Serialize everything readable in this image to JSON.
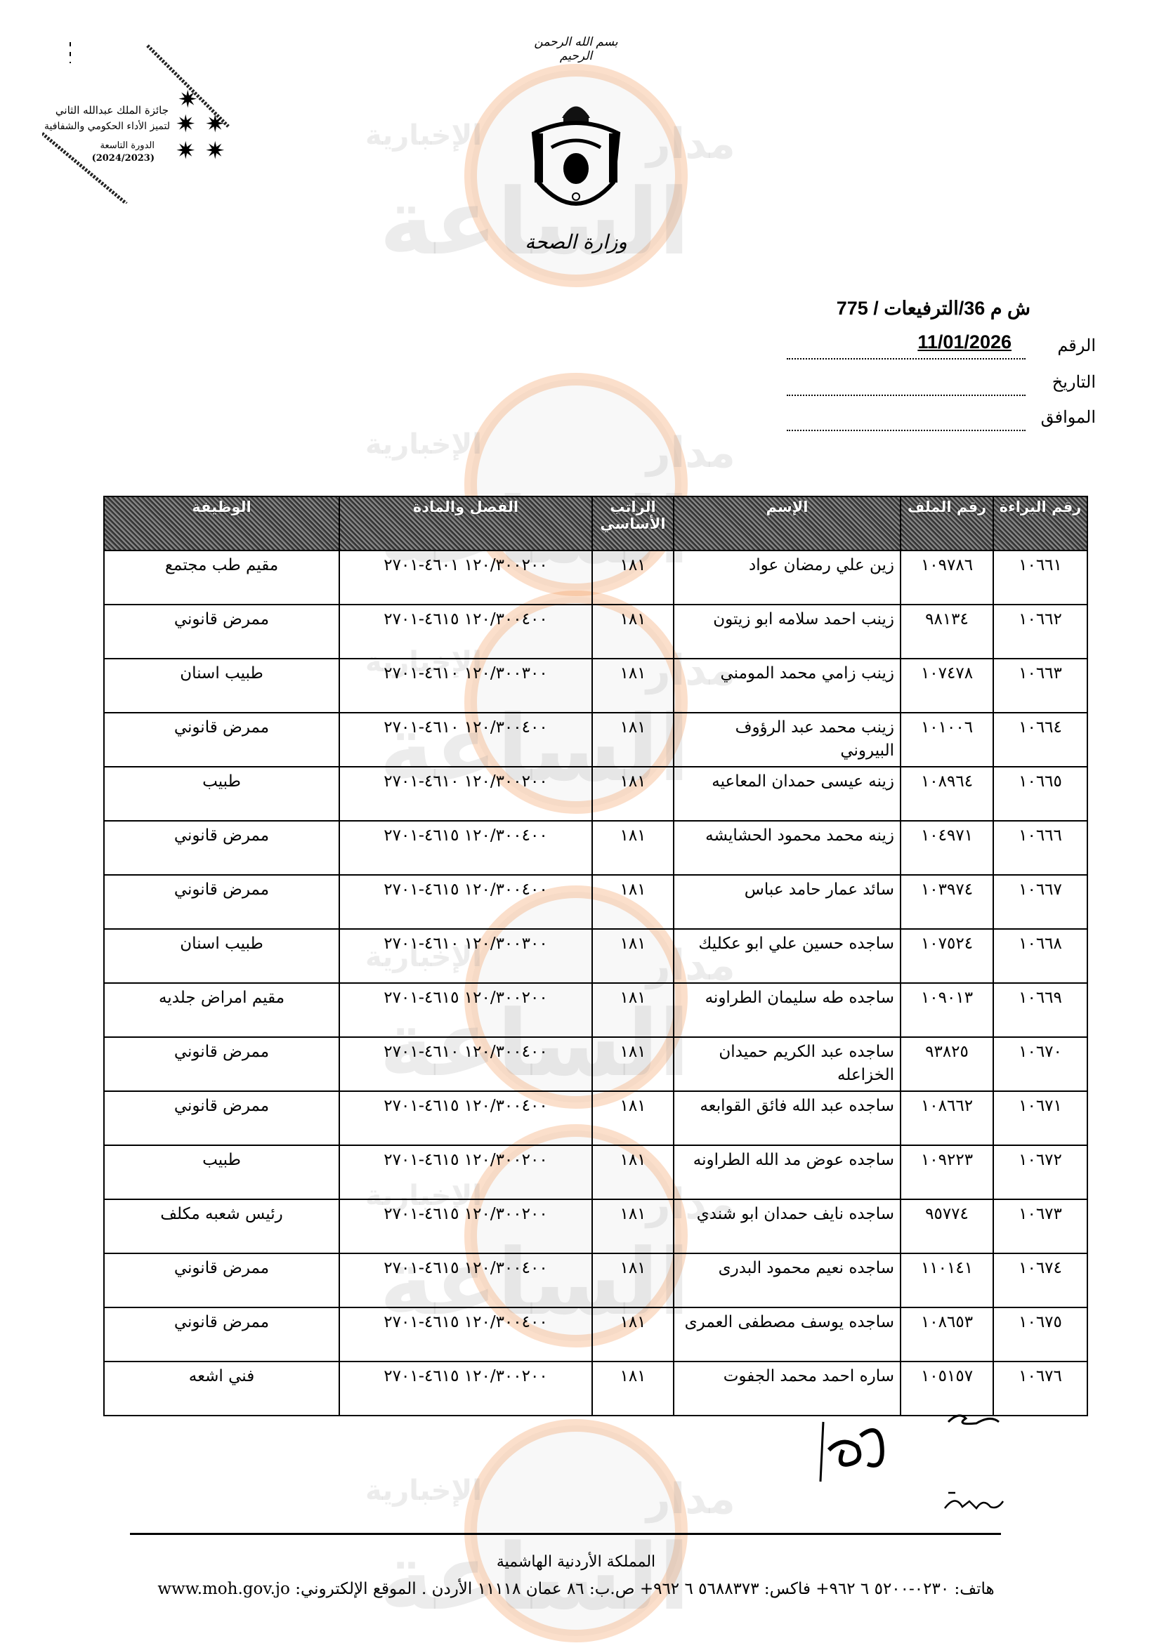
{
  "watermark": {
    "line1": "مدار",
    "line2": "الساعة",
    "line3": "الإخبارية"
  },
  "award": {
    "line1": "جائزة الملك عبدالله الثاني",
    "line2": "لتميز الأداء الحكومي والشفافية",
    "line3": "الدورة التاسعة",
    "line4": "(2024/2023)"
  },
  "letterhead": {
    "basmala": "بسم الله الرحمن الرحيم",
    "ministry": "وزارة الصحة"
  },
  "reference": {
    "ref_text": "ش م 36/الترفيعات / 775",
    "number_label": "الرقم",
    "number_value": "11/01/2026",
    "date_label": "التاريخ",
    "corresponding_label": "الموافق"
  },
  "table": {
    "headers": [
      "رقم البراءة",
      "رقم الملف",
      "الإسم",
      "الراتب الأساسي",
      "الفصل والمادة",
      "الوظيفة"
    ],
    "rows": [
      {
        "cert": "١٠٦٦١",
        "file": "١٠٩٧٨٦",
        "name": "زين علي رمضان عواد",
        "salary": "١٨١",
        "chapter": "١٢٠/٣٠٠٢٠٠  ٤٦٠١-٢٧٠١",
        "job": "مقيم طب مجتمع"
      },
      {
        "cert": "١٠٦٦٢",
        "file": "٩٨١٣٤",
        "name": "زينب احمد سلامه ابو زيتون",
        "salary": "١٨١",
        "chapter": "١٢٠/٣٠٠٤٠٠  ٤٦١٥-٢٧٠١",
        "job": "ممرض قانوني"
      },
      {
        "cert": "١٠٦٦٣",
        "file": "١٠٧٤٧٨",
        "name": "زينب زامي محمد المومني",
        "salary": "١٨١",
        "chapter": "١٢٠/٣٠٠٣٠٠  ٤٦١٠-٢٧٠١",
        "job": "طبيب اسنان"
      },
      {
        "cert": "١٠٦٦٤",
        "file": "١٠١٠٠٦",
        "name": "زينب محمد عبد الرؤوف البيروني",
        "salary": "١٨١",
        "chapter": "١٢٠/٣٠٠٤٠٠  ٤٦١٠-٢٧٠١",
        "job": "ممرض قانوني"
      },
      {
        "cert": "١٠٦٦٥",
        "file": "١٠٨٩٦٤",
        "name": "زينه عيسى حمدان المعاعيه",
        "salary": "١٨١",
        "chapter": "١٢٠/٣٠٠٢٠٠  ٤٦١٠-٢٧٠١",
        "job": "طبيب"
      },
      {
        "cert": "١٠٦٦٦",
        "file": "١٠٤٩٧١",
        "name": "زينه محمد محمود الحشايشه",
        "salary": "١٨١",
        "chapter": "١٢٠/٣٠٠٤٠٠  ٤٦١٥-٢٧٠١",
        "job": "ممرض قانوني"
      },
      {
        "cert": "١٠٦٦٧",
        "file": "١٠٣٩٧٤",
        "name": "سائد عمار حامد عباس",
        "salary": "١٨١",
        "chapter": "١٢٠/٣٠٠٤٠٠  ٤٦١٥-٢٧٠١",
        "job": "ممرض قانوني"
      },
      {
        "cert": "١٠٦٦٨",
        "file": "١٠٧٥٢٤",
        "name": "ساجده حسين علي ابو عكليك",
        "salary": "١٨١",
        "chapter": "١٢٠/٣٠٠٣٠٠  ٤٦١٠-٢٧٠١",
        "job": "طبيب اسنان"
      },
      {
        "cert": "١٠٦٦٩",
        "file": "١٠٩٠١٣",
        "name": "ساجده طه سليمان الطراونه",
        "salary": "١٨١",
        "chapter": "١٢٠/٣٠٠٢٠٠  ٤٦١٥-٢٧٠١",
        "job": "مقيم امراض جلديه"
      },
      {
        "cert": "١٠٦٧٠",
        "file": "٩٣٨٢٥",
        "name": "ساجده عبد الكريم حميدان الخزاعله",
        "salary": "١٨١",
        "chapter": "١٢٠/٣٠٠٤٠٠  ٤٦١٠-٢٧٠١",
        "job": "ممرض قانوني"
      },
      {
        "cert": "١٠٦٧١",
        "file": "١٠٨٦٦٢",
        "name": "ساجده عبد الله فائق القوابعه",
        "salary": "١٨١",
        "chapter": "١٢٠/٣٠٠٤٠٠  ٤٦١٥-٢٧٠١",
        "job": "ممرض قانوني"
      },
      {
        "cert": "١٠٦٧٢",
        "file": "١٠٩٢٢٣",
        "name": "ساجده عوض مد الله الطراونه",
        "salary": "١٨١",
        "chapter": "١٢٠/٣٠٠٢٠٠  ٤٦١٥-٢٧٠١",
        "job": "طبيب"
      },
      {
        "cert": "١٠٦٧٣",
        "file": "٩٥٧٧٤",
        "name": "ساجده نايف حمدان ابو شندي",
        "salary": "١٨١",
        "chapter": "١٢٠/٣٠٠٢٠٠  ٤٦١٥-٢٧٠١",
        "job": "رئيس شعبه مكلف"
      },
      {
        "cert": "١٠٦٧٤",
        "file": "١١٠١٤١",
        "name": "ساجده نعيم محمود البدرى",
        "salary": "١٨١",
        "chapter": "١٢٠/٣٠٠٤٠٠  ٤٦١٥-٢٧٠١",
        "job": "ممرض قانوني"
      },
      {
        "cert": "١٠٦٧٥",
        "file": "١٠٨٦٥٣",
        "name": "ساجده يوسف مصطفى العمرى",
        "salary": "١٨١",
        "chapter": "١٢٠/٣٠٠٤٠٠  ٤٦١٥-٢٧٠١",
        "job": "ممرض قانوني"
      },
      {
        "cert": "١٠٦٧٦",
        "file": "١٠٥١٥٧",
        "name": "ساره احمد محمد الجفوت",
        "salary": "١٨١",
        "chapter": "١٢٠/٣٠٠٢٠٠  ٤٦١٥-٢٧٠١",
        "job": "فني اشعه"
      }
    ]
  },
  "footer": {
    "kingdom": "المملكة الأردنية الهاشمية",
    "contact": "هاتف: ٠٢٣٠-٥٢٠٠ ٦ ٩٦٢+  فاكس: ٥٦٨٨٣٧٣ ٦ ٩٦٢+  ص.ب: ٨٦ عمان ١١١١٨ الأردن . الموقع الإلكتروني: www.moh.gov.jo"
  },
  "colors": {
    "watermark_ring": "#f4a36a",
    "watermark_text": "#969696"
  }
}
